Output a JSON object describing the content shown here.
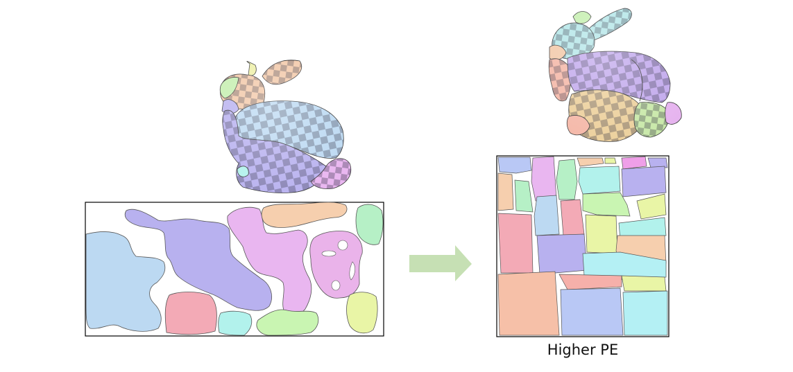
{
  "figure": {
    "caption_right": "Higher PE",
    "left_model": "bunny-texture-mapped",
    "right_model": "bunny-texture-mapped",
    "arrow_icon": "right-arrow-icon",
    "colors": {
      "arrow": "#c6e0b4",
      "blue": "#bcd9f2",
      "purple": "#b8b1ef",
      "pink_lilac": "#e9b6f0",
      "peach": "#f6cfae",
      "mint": "#b6f0c6",
      "rose": "#f3aab6",
      "cyan": "#b2f2ec",
      "lime": "#e9f5a6",
      "green": "#c9f5b2",
      "salmon": "#f6c0a8",
      "periwinkle": "#b9c8f5",
      "light_cyan": "#b4f0f4"
    }
  }
}
